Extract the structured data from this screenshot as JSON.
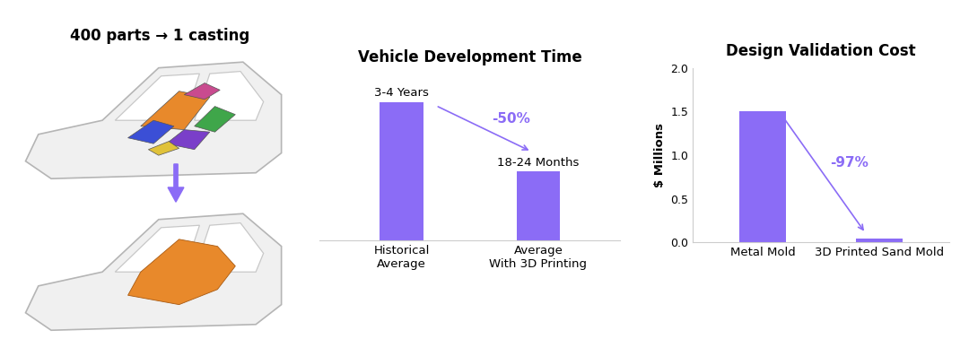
{
  "illustration": {
    "title": "400 parts → 1 casting"
  },
  "chart_data": [
    {
      "type": "bar",
      "title": "Vehicle Development Time",
      "categories": [
        "Historical\nAverage",
        "Average\nWith 3D Printing"
      ],
      "values": [
        3.5,
        1.75
      ],
      "value_labels": [
        "3-4 Years",
        "18-24 Months"
      ],
      "data_labels": true,
      "color": "#8b6cf6",
      "ylim": [
        0,
        4.2
      ],
      "tick_labels": "x",
      "grid": false,
      "annotation": "-50%"
    },
    {
      "type": "bar",
      "title": "Design Validation Cost",
      "y_label": "$ Millions",
      "categories": [
        "Metal Mold",
        "3D Printed Sand Mold"
      ],
      "values": [
        1.5,
        0.045
      ],
      "color": "#8b6cf6",
      "ylim": [
        0,
        2
      ],
      "yticks": [
        {
          "value": 0,
          "label": "0.0"
        },
        {
          "value": 0.5,
          "label": "0.5"
        },
        {
          "value": 1,
          "label": "1.0"
        },
        {
          "value": 1.5,
          "label": "1.5"
        },
        {
          "value": 2,
          "label": "2.0"
        }
      ],
      "grid": false,
      "annotation": "-97%"
    }
  ]
}
